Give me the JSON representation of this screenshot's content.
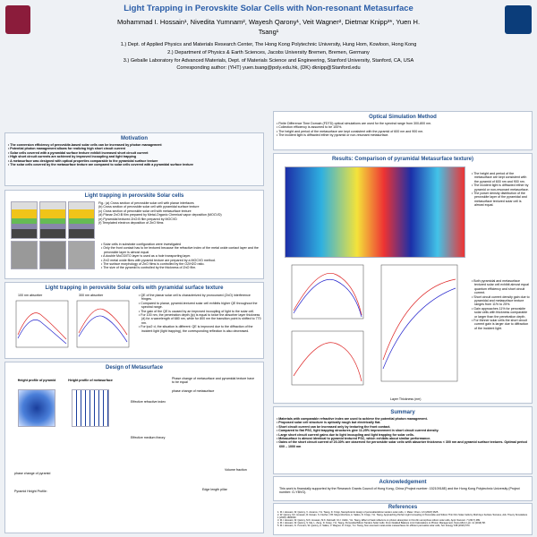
{
  "header": {
    "title": "Light Trapping in Perovskite Solar Cells with Non-resonant Metasurface",
    "authors": "Mohammad I. Hossain¹, Nivedita Yumnam², Wayesh Qarony¹, Veit Wagner², Dietmar Knipp³*, Yuen H. Tsang¹",
    "affiliations": [
      "1.) Dept. of Applied Physics and Materials Research Center, The Hong Kong Polytechnic University, Hung Hom, Kowloon, Hong Kong",
      "2.) Department of Physics & Earth Sciences, Jacobs University Bremen, Bremen, Germany",
      "3.) Geballe Laboratory for Advanced Materials, Dept. of Materials Science and Engineering, Stanford University, Stanford, CA, USA"
    ],
    "contact": "Corresponding author: (YHT) yuen.tsang@poly.edu.hk, (DK) dknipp@Stanford.edu"
  },
  "motivation": {
    "heading": "Motivation",
    "bullets": [
      "The conversion efficiency of perovskite-based solar cells can be increased by photon management",
      "Potential photon management allows for realizing high short circuit current",
      "Solar cells covered with a pyramidal surface texture exhibit increased short circuit current",
      "High short circuit currents are achieved by improved incoupling and light trapping",
      "A metasurface was designed with optical properties comparable to the pyramidal surface texture",
      "The solar cells covered by the metasurface texture are compared to solar cells covered with a pyramidal surface texture"
    ]
  },
  "light_trapping": {
    "heading": "Light trapping in perovskite Solar cells",
    "captions": [
      "Fig.: (a) Cross section of perovskite solar cell with planar interfaces",
      "(b) Cross section of perovskite solar cell with pyramidal surface texture",
      "(c) Cross section of perovskite solar cell with metasurface texture",
      "(d) Planar ZnO:B film prepared by Metal-Organic Chemical vapor deposition (MOCVD)",
      "(e) Pyramidal textured ZnO:B film prepared by MOCVD",
      "(f) Templated electron deposition of ZnO films"
    ],
    "bullets": [
      "Solar cells in substrate configuration were investigated",
      "Only the front contact has to be textured because the refractive index of the metal oxide contact layer and the perovskite layer is almost equal",
      "A double MoO3/ITO layer is used as a hole transporting layer.",
      "ZnO metal oxide films with pyramid texture are prepared by a MOCVD method.",
      "The surface morphology of ZnO films is controlled by the O2/H2O ratio.",
      "The size of the pyramid is controlled by the thickness of ZnO film."
    ]
  },
  "pyramidal": {
    "heading": "Light trapping in perovskite Solar cells with pyramidal surface texture",
    "plots": [
      "100 nm absorber",
      "300 nm absorber"
    ],
    "bullets": [
      "QE of the planar solar cell is characterized by pronounced (ZnO) interference fringes.",
      "Compared to planar, pyramid-textured solar cell exhibits higher QE throughout the spectral range.",
      "The gain of the QE is caused by an improved incoupling of light to the solar cell.",
      "For 100 nm, the penetration depth (lp) is equal to twice the absorber layer thickness (d) for a wavelength of 680 nm, while for 800 nm the transition point is shifted to 770 nm.",
      "For lp≥2·d, the situation is different: QE is improved due to the diffraction of the incident light (light trapping), the corresponding reflection is also decreased."
    ]
  },
  "metasurface": {
    "heading": "Design of Metasurface",
    "labels": [
      "Height profile of pyramid",
      "Height profile of metasurface",
      "Phase change of metasurface and pyramidal texture have to be equal",
      "phase change of metasurface",
      "Effective refractive index",
      "Effective medium theory",
      "Volume fraction",
      "Edge length pillar",
      "phase change of pyramid",
      "Pyramid Height Profile:"
    ]
  },
  "optical_method": {
    "heading": "Optical Simulation Method",
    "bullets": [
      "Finite Difference Time Domain (FDTD) optical simulations are used for the spectral range from 300-800 nm.",
      "Collection efficiency is assumed to be 100%.",
      "The height and period of the metasurface are kept consistent with the pyramid of 600 nm and 900 nm.",
      "The incident light is diffracted either by pyramid or non-resonant metasurface."
    ]
  },
  "results": {
    "heading": "Results: Comparison of pyramidal Metasurface texture)",
    "notes_top": [
      "The height and period of the metasurface are kept consistent with the pyramid of 600 nm and 900 nm.",
      "The incident light is diffracted either by pyramid or non-resonant metasurface.",
      "The power density distribution of the perovskite layer of the pyramidal and metasurface textured solar cell is almost equal."
    ],
    "notes_bottom": [
      "Both pyramidal and metasurface textured solar cell exhibit almost equal quantum efficiency and short circuit current.",
      "Short circuit current density gain due to pyramidal and metasurface texture ranges from 11% to 25%.",
      "Gain approaches 11% for perovskite solar cells with thickness comparable or larger than the penetration depth.",
      "For thinner solar cells the short circuit current gain is larger due to diffraction of the incident light."
    ],
    "x_label": "Layer Thickness (nm)"
  },
  "summary": {
    "heading": "Summary",
    "bullets": [
      "Materials with comparable refractive index are used to achieve the potential photon management.",
      "Proposed solar cell structure is optically rough but electrically flat.",
      "Short circuit current can be increased only by texturing the front contact.",
      "Compared to flat PSC, light trapping structures give 11-25% improvement in short circuit current density.",
      "Large short circuit current gains due to light incoupling and light trapping for solar cells.",
      "Metasurface is almost identical to pyramid textured PSC, which exhibits about similar performance.",
      "Gains of the short circuit current of 20-30% are observed for perovskite solar cells with absorber thickness < 300 nm and pyramid surface textures. Optimal period 600 – 1000 nm"
    ]
  },
  "acknowledgement": {
    "heading": "Acknowledgement",
    "text": "This work is financially supported by the Research Grants Council of Hong Kong, China (Project number: 15210918E) and the Hong Kong Polytechnic University (Project number: G-YBVG)."
  },
  "references": {
    "heading": "References",
    "items": [
      "1. M.I. Hossain, W. Qarony, V. Jovanov, Y.H. Tsang, D. Knipp, Nanophotonic design of perovskite/silicon tandem solar cells, J. Mater. Chem. A 6 (2018) 3625.",
      "2. W. Qarony, M.I. Hossain, R. Dewan, S. Fischer, V.B. Meyer-Rochow, A. Salleo, D. Knipp, Y.H. Tsang, Approaching Perfect Light Incoupling in Perovskite and Silicon Thin Film Solar Cells by Moth Eye Surface Textures, Adv. Theory Simulations 1 (2018) 1800030.",
      "3. M.I. Hossain, W. Qarony, M.K. Hossain, M.K. Debnath, M.J. Uddin, Y.H. Tsang, Effect of back reflectors on photon absorption in thin-film amorphous silicon solar cells, Appl. Nanosci. 7 (2017) 489.",
      "4. M.I. Hossain, W. Qarony, S. Ma, L. Zeng, D. Knipp, Y.H. Tsang, Perovskite/Silicon Tandem Solar Cells: From Detailed Balance Limit Calculations to Photon Management, Nano-Micro Lett. 11 (2019) 58.",
      "5. M.I. Hossain, N. Yumnam, W. Qarony, A. Salleo, V. Wagner, D. Knipp, Y.H. Tsang, Non-resonant metal-oxide metasurfaces for efficient perovskite solar cells, Sol. Energy 198 (2020) 570."
    ]
  }
}
